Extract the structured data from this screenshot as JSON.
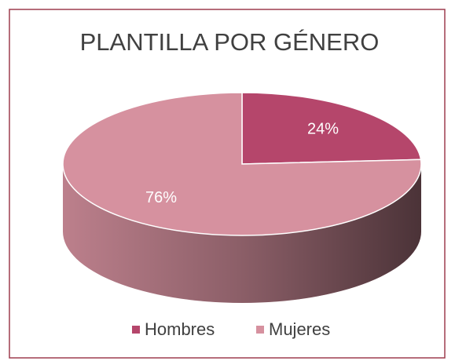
{
  "chart_data": {
    "type": "pie3d",
    "title": "PLANTILLA POR GÉNERO",
    "categories": [
      "Hombres",
      "Mujeres"
    ],
    "values": [
      24,
      76
    ],
    "value_labels": [
      "24%",
      "76%"
    ],
    "colors": [
      "#b5466b",
      "#d6919f"
    ],
    "legend": "bottom"
  }
}
